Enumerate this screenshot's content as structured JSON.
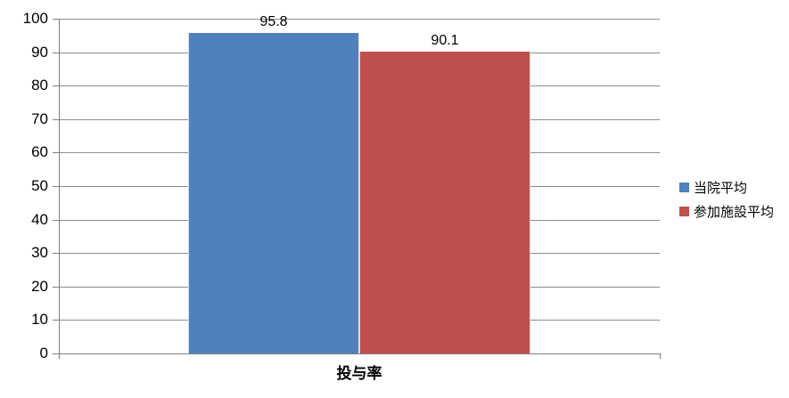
{
  "chart_data": {
    "type": "bar",
    "title": "",
    "xlabel": "投与率",
    "ylabel": "",
    "categories": [
      "投与率"
    ],
    "series": [
      {
        "name": "当院平均",
        "values": [
          95.8
        ],
        "color": "#4F81BD"
      },
      {
        "name": "参加施設平均",
        "values": [
          90.1
        ],
        "color": "#C0504D"
      }
    ],
    "data_labels": [
      "95.8",
      "90.1"
    ],
    "ylim": [
      0,
      100
    ],
    "yticks": [
      0,
      10,
      20,
      30,
      40,
      50,
      60,
      70,
      80,
      90,
      100
    ],
    "grid": true,
    "legend_position": "right",
    "colors": {
      "gridline": "#8C8C8C",
      "axis": "#7F7F7F",
      "text": "#000000",
      "background": "#FFFFFF"
    }
  }
}
